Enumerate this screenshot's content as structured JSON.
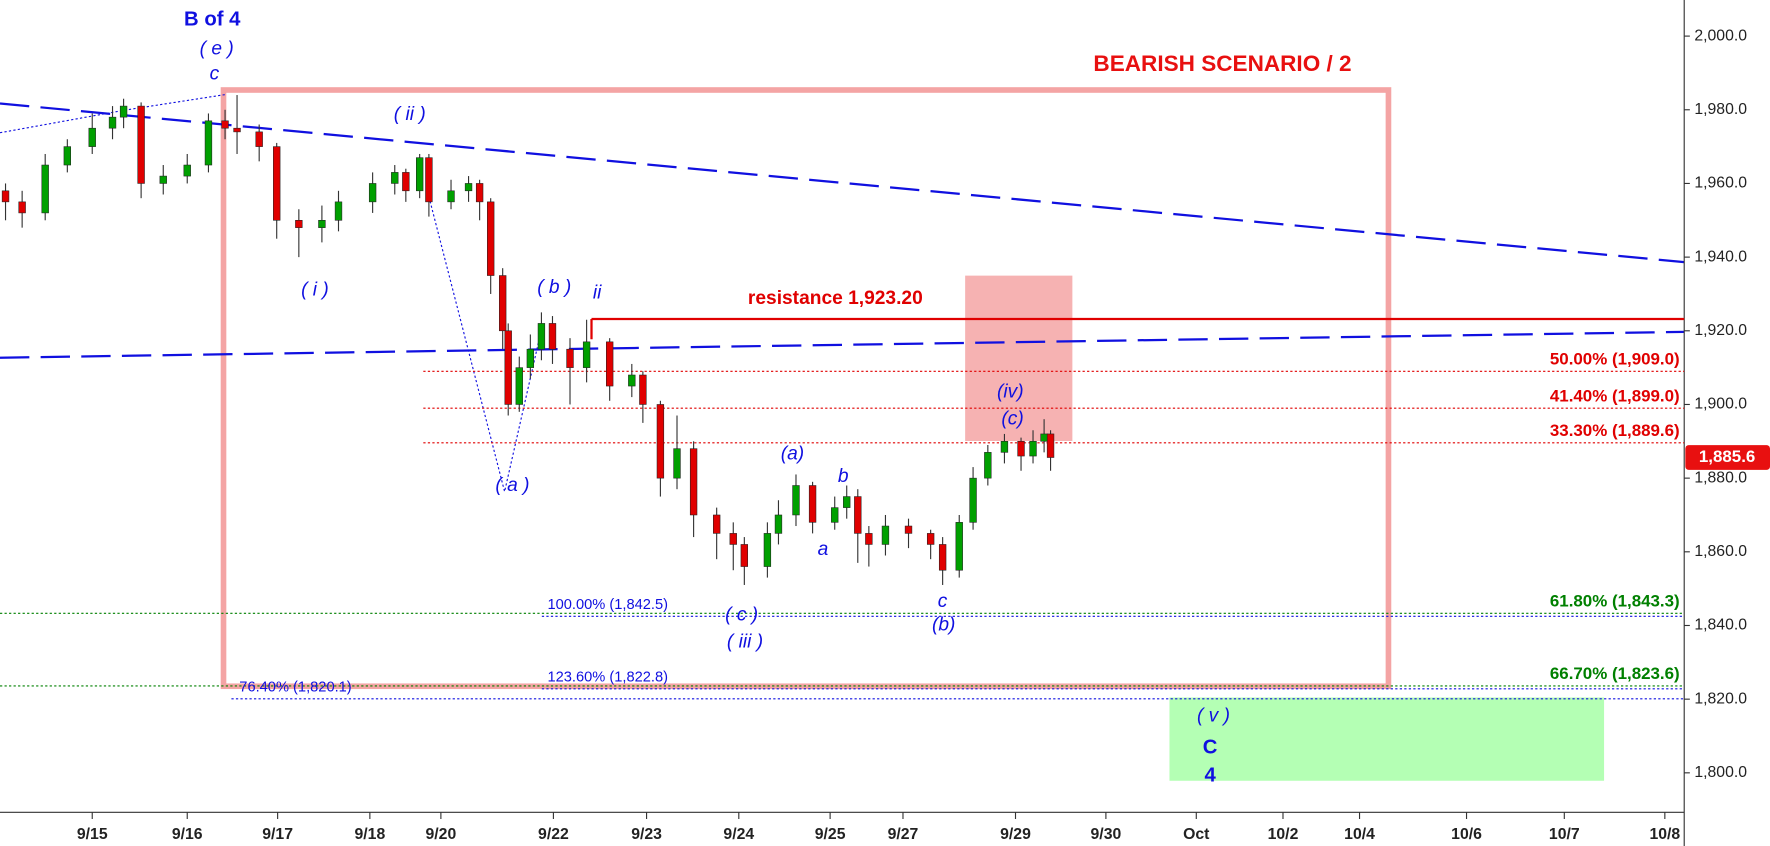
{
  "chart_data": {
    "type": "candlestick",
    "title": "BEARISH SCENARIO / 2",
    "xlim": [
      0,
      18.26
    ],
    "xticks": [
      {
        "value": 1,
        "label": "9/15"
      },
      {
        "value": 2.03,
        "label": "9/16"
      },
      {
        "value": 3.01,
        "label": "9/17"
      },
      {
        "value": 4.01,
        "label": "9/18"
      },
      {
        "value": 4.78,
        "label": "9/20"
      },
      {
        "value": 6.0,
        "label": "9/22"
      },
      {
        "value": 7.01,
        "label": "9/23"
      },
      {
        "value": 8.01,
        "label": "9/24"
      },
      {
        "value": 9.0,
        "label": "9/25"
      },
      {
        "value": 9.79,
        "label": "9/27"
      },
      {
        "value": 11.01,
        "label": "9/29"
      },
      {
        "value": 11.99,
        "label": "9/30"
      },
      {
        "value": 12.97,
        "label": "Oct"
      },
      {
        "value": 13.91,
        "label": "10/2"
      },
      {
        "value": 14.74,
        "label": "10/4"
      },
      {
        "value": 15.9,
        "label": "10/6"
      },
      {
        "value": 16.96,
        "label": "10/7"
      },
      {
        "value": 18.05,
        "label": "10/8"
      }
    ],
    "ylim": [
      1789.3,
      2009.8
    ],
    "yticks": [
      {
        "value": 1800,
        "label": "1,800.0"
      },
      {
        "value": 1820,
        "label": "1,820.0"
      },
      {
        "value": 1840,
        "label": "1,840.0"
      },
      {
        "value": 1860,
        "label": "1,860.0"
      },
      {
        "value": 1880,
        "label": "1,880.0"
      },
      {
        "value": 1900,
        "label": "1,900.0"
      },
      {
        "value": 1920,
        "label": "1,920.0"
      },
      {
        "value": 1940,
        "label": "1,940.0"
      },
      {
        "value": 1960,
        "label": "1,960.0"
      },
      {
        "value": 1980,
        "label": "1,980.0"
      },
      {
        "value": 2000,
        "label": "2,000.0"
      }
    ],
    "up_color": "#00a000",
    "down_color": "#e00000",
    "candles": {
      "x": [
        0.06,
        0.24,
        0.49,
        0.73,
        1.0,
        1.22,
        1.34,
        1.53,
        1.77,
        2.03,
        2.26,
        2.44,
        2.57,
        2.81,
        3.0,
        3.24,
        3.49,
        3.67,
        4.04,
        4.28,
        4.4,
        4.55,
        4.65,
        4.89,
        5.08,
        5.2,
        5.32,
        5.45,
        5.51,
        5.63,
        5.75,
        5.87,
        5.99,
        6.18,
        6.36,
        6.61,
        6.85,
        6.97,
        7.16,
        7.34,
        7.52,
        7.77,
        7.95,
        8.07,
        8.32,
        8.44,
        8.63,
        8.81,
        9.05,
        9.18,
        9.3,
        9.42,
        9.6,
        9.85,
        10.09,
        10.22,
        10.4,
        10.55,
        10.71,
        10.89,
        11.07,
        11.2,
        11.32,
        11.39
      ],
      "open": [
        1958,
        1955,
        1952,
        1965,
        1970,
        1975,
        1978,
        1981,
        1960,
        1962,
        1965,
        1977,
        1975,
        1974,
        1970,
        1950,
        1948,
        1950,
        1955,
        1960,
        1963,
        1958,
        1967,
        1955,
        1958,
        1960,
        1955,
        1935,
        1920,
        1900,
        1910,
        1915,
        1922,
        1915,
        1910,
        1917,
        1905,
        1908,
        1900,
        1880,
        1888,
        1870,
        1865,
        1862,
        1856,
        1865,
        1870,
        1878,
        1868,
        1872,
        1875,
        1865,
        1862,
        1867,
        1865,
        1862,
        1855,
        1868,
        1880,
        1887,
        1890,
        1886,
        1890,
        1892
      ],
      "high": [
        1960,
        1958,
        1968,
        1972,
        1979,
        1981,
        1983,
        1982,
        1965,
        1968,
        1979,
        1980,
        1984,
        1976,
        1971,
        1953,
        1954,
        1958,
        1963,
        1965,
        1964,
        1968,
        1968,
        1961,
        1962,
        1961,
        1956,
        1937,
        1922,
        1913,
        1919,
        1925,
        1924,
        1918,
        1923,
        1918,
        1911,
        1909,
        1901,
        1897,
        1890,
        1872,
        1868,
        1864,
        1868,
        1874,
        1881,
        1879,
        1875,
        1878,
        1877,
        1867,
        1870,
        1869,
        1866,
        1864,
        1870,
        1883,
        1889,
        1892,
        1891,
        1893,
        1896,
        1893
      ],
      "low": [
        1950,
        1948,
        1950,
        1963,
        1968,
        1972,
        1975,
        1956,
        1957,
        1960,
        1963,
        1972,
        1968,
        1966,
        1945,
        1940,
        1944,
        1947,
        1952,
        1957,
        1955,
        1956,
        1951,
        1953,
        1955,
        1950,
        1930,
        1915,
        1897,
        1898,
        1907,
        1912,
        1911,
        1900,
        1906,
        1901,
        1902,
        1895,
        1875,
        1877,
        1864,
        1858,
        1855,
        1851,
        1853,
        1862,
        1867,
        1865,
        1866,
        1869,
        1857,
        1856,
        1859,
        1861,
        1858,
        1851,
        1853,
        1866,
        1878,
        1884,
        1882,
        1884,
        1887,
        1882
      ],
      "close": [
        1955,
        1952,
        1965,
        1970,
        1975,
        1978,
        1981,
        1960,
        1962,
        1965,
        1977,
        1975,
        1974,
        1970,
        1950,
        1948,
        1950,
        1955,
        1960,
        1963,
        1958,
        1967,
        1955,
        1958,
        1960,
        1955,
        1935,
        1920,
        1900,
        1910,
        1915,
        1922,
        1915,
        1910,
        1917,
        1905,
        1908,
        1900,
        1880,
        1888,
        1870,
        1865,
        1862,
        1856,
        1865,
        1870,
        1878,
        1868,
        1872,
        1875,
        1865,
        1862,
        1867,
        1865,
        1862,
        1855,
        1868,
        1880,
        1887,
        1890,
        1886,
        1890,
        1892,
        1885.6
      ]
    },
    "last_price": {
      "value": 1885.6,
      "label": "1,885.6"
    },
    "resistance": {
      "value": 1923.2,
      "label": "resistance 1,923.20",
      "color": "#e00000"
    },
    "fib_levels": [
      {
        "value": 1909.0,
        "label": "50.00% (1,909.0)",
        "color": "#e00000"
      },
      {
        "value": 1899.0,
        "label": "41.40% (1,899.0)",
        "color": "#e00000"
      },
      {
        "value": 1889.6,
        "label": "33.30% (1,889.6)",
        "color": "#e00000"
      },
      {
        "value": 1843.3,
        "label": "61.80% (1,843.3)",
        "color": "#008000"
      },
      {
        "value": 1823.6,
        "label": "66.70% (1,823.6)",
        "color": "#008000"
      },
      {
        "value": 1842.5,
        "label": "100.00% (1,842.5)",
        "color": "#1010e0"
      },
      {
        "value": 1822.8,
        "label": "123.60% (1,822.8)",
        "color": "#1010e0"
      },
      {
        "value": 1820.1,
        "label": "76.40% (1,820.1)",
        "color": "#1010e0"
      }
    ],
    "wave_labels": [
      "B of 4",
      "( e )",
      "c",
      "( ii )",
      "( i )",
      "( b )",
      "ii",
      "( a )",
      "(a)",
      "b",
      "a",
      "( c )",
      "( iii )",
      "c",
      "(b)",
      "(iv)",
      "(c)",
      "( v )",
      "C",
      "4"
    ]
  }
}
